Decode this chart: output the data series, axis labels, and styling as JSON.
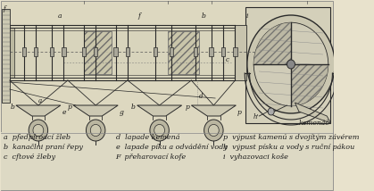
{
  "background_color": "#e8e2cc",
  "text_color": "#1a1a1a",
  "diagram_color": "#ddd8c0",
  "legend_col1": [
    "a  pfedpíroací žleb",
    "b  kanačlni praní řepy",
    "c  cftové žleby"
  ],
  "legend_col2": [
    "d  lapade kemená",
    "e  lapade píku a odvádění vody",
    "F  přeharovací kofe"
  ],
  "legend_col3": [
    "p  výpust kamenú s dvojítým závérem",
    "h  výpust písku a vody s ruční pákou",
    "i  vyhazovaci koše"
  ],
  "top_labels": [
    [
      "a",
      95
    ],
    [
      "f",
      195
    ],
    [
      "b",
      270
    ],
    [
      "i",
      320
    ]
  ],
  "legend_fontsize": 5.8,
  "line_color": "#2a2a2a",
  "light_line": "#888880"
}
